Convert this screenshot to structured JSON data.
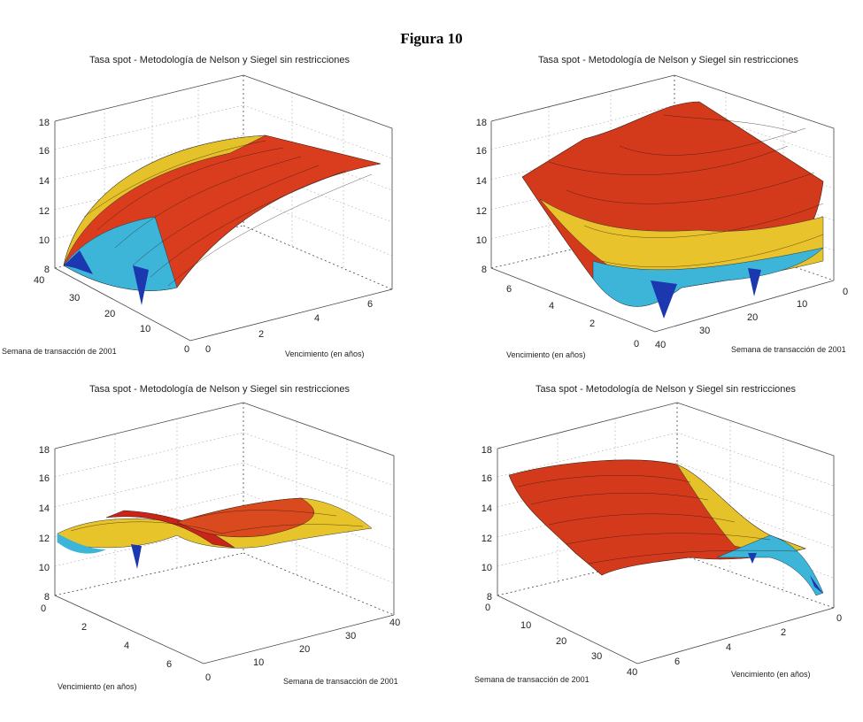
{
  "figure_title": "Figura 10",
  "chart_data": [
    {
      "type": "surface",
      "title": "Tasa spot - Metodología de Nelson y Siegel sin restricciones",
      "xlabel": "Vencimiento (en años)",
      "ylabel": "Semana de transacción de 2001",
      "zlabel": "",
      "xlim": [
        0,
        7
      ],
      "ylim": [
        0,
        40
      ],
      "zlim": [
        8,
        18
      ],
      "x_ticks": [
        "0",
        "2",
        "4",
        "6"
      ],
      "y_ticks": [
        "0",
        "10",
        "20",
        "30",
        "40"
      ],
      "z_ticks": [
        "8",
        "10",
        "12",
        "14",
        "16",
        "18"
      ],
      "view": "maturity axis front-right, week axis front-left",
      "surface": {
        "spot_rate_short_end": 9,
        "spot_rate_long_end": 16
      }
    },
    {
      "type": "surface",
      "title": "Tasa spot - Metodología de Nelson y Siegel sin restricciones",
      "xlabel": "Vencimiento (en años)",
      "ylabel": "Semana de transacción de 2001",
      "zlabel": "",
      "xlim": [
        0,
        7
      ],
      "ylim": [
        0,
        40
      ],
      "zlim": [
        8,
        18
      ],
      "x_ticks": [
        "0",
        "2",
        "4",
        "6"
      ],
      "y_ticks": [
        "0",
        "10",
        "20",
        "30",
        "40"
      ],
      "z_ticks": [
        "8",
        "10",
        "12",
        "14",
        "16",
        "18"
      ],
      "view": "maturity axis front-left, week axis front-right",
      "surface": {
        "spot_rate_short_end": 9,
        "spot_rate_long_end": 17
      }
    },
    {
      "type": "surface",
      "title": "Tasa spot - Metodología de Nelson y Siegel sin restricciones",
      "xlabel": "Vencimiento (en años)",
      "ylabel": "Semana de transacción de 2001",
      "zlabel": "",
      "xlim": [
        0,
        7
      ],
      "ylim": [
        0,
        40
      ],
      "zlim": [
        8,
        18
      ],
      "x_ticks": [
        "0",
        "2",
        "4",
        "6"
      ],
      "y_ticks": [
        "0",
        "10",
        "20",
        "30",
        "40"
      ],
      "z_ticks": [
        "8",
        "10",
        "12",
        "14",
        "16",
        "18"
      ],
      "view": "maturity axis front-left, week axis front-right (low elevation)",
      "surface": {
        "spot_rate_short_end": 12,
        "spot_rate_long_end": 14
      }
    },
    {
      "type": "surface",
      "title": "Tasa spot - Metodología de Nelson y Siegel sin restricciones",
      "xlabel": "Vencimiento (en años)",
      "ylabel": "Semana de transacción de 2001",
      "zlabel": "",
      "xlim": [
        0,
        7
      ],
      "ylim": [
        0,
        40
      ],
      "zlim": [
        8,
        18
      ],
      "x_ticks": [
        "0",
        "2",
        "4",
        "6"
      ],
      "y_ticks": [
        "0",
        "10",
        "20",
        "30",
        "40"
      ],
      "z_ticks": [
        "8",
        "10",
        "12",
        "14",
        "16",
        "18"
      ],
      "view": "week axis front-left, maturity axis front-right (reversed)",
      "surface": {
        "spot_rate_short_end": 9,
        "spot_rate_long_end": 16
      }
    }
  ]
}
